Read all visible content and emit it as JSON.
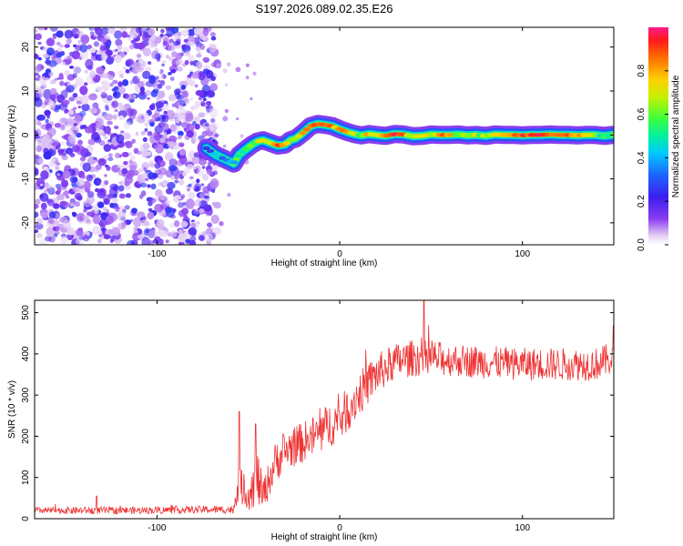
{
  "chart_data": [
    {
      "type": "heatmap",
      "title": "S197.2026.089.02.35.E26",
      "xlabel": "Height of straight line (km)",
      "ylabel": "Frequency (Hz)",
      "xlim": [
        -167,
        150
      ],
      "ylim": [
        -25,
        24.5
      ],
      "xticks": [
        -100,
        0,
        100
      ],
      "xtick_labels": [
        "-100",
        "0",
        "100"
      ],
      "yticks": [
        -20,
        -10,
        0,
        10,
        20
      ],
      "ytick_labels": [
        "-20",
        "-10",
        "0",
        "10",
        "20"
      ],
      "noise_region_x": [
        -167,
        -67
      ],
      "ridge": {
        "x": [
          -73,
          -68,
          -63,
          -58,
          -55,
          -52,
          -48,
          -45,
          -42,
          -38,
          -34,
          -30,
          -27,
          -24,
          -20,
          -16,
          -12,
          -8,
          -4,
          0,
          4,
          8,
          12,
          16,
          20,
          25,
          30,
          35,
          40,
          45,
          50,
          55,
          60,
          65,
          70,
          75,
          80,
          85,
          90,
          95,
          100,
          105,
          110,
          115,
          120,
          125,
          130,
          135,
          140,
          145,
          149
        ],
        "freq": [
          -3,
          -4.5,
          -5.5,
          -6.5,
          -4.5,
          -3.5,
          -2.2,
          -1.5,
          -1.2,
          -1.8,
          -2.4,
          -2.2,
          -1.2,
          -0.8,
          0.5,
          2,
          2.5,
          2.3,
          2,
          1.3,
          0.7,
          0.2,
          -0.1,
          0.2,
          0,
          -0.2,
          0.2,
          0.1,
          -0.3,
          -0.2,
          0.1,
          0,
          0,
          0.1,
          -0.1,
          0,
          -0.2,
          0.1,
          0,
          0,
          -0.1,
          0,
          0,
          0.1,
          0,
          0,
          -0.1,
          0,
          0,
          -0.2,
          0
        ],
        "amplitude": [
          0.3,
          0.35,
          0.4,
          0.35,
          0.5,
          0.55,
          0.6,
          0.7,
          0.75,
          0.6,
          0.85,
          0.7,
          0.6,
          0.75,
          0.8,
          0.9,
          0.92,
          0.95,
          0.85,
          0.75,
          0.8,
          0.7,
          0.6,
          0.85,
          0.65,
          0.8,
          0.9,
          0.85,
          0.6,
          0.7,
          0.65,
          0.85,
          0.8,
          0.6,
          0.7,
          0.65,
          0.6,
          0.7,
          0.85,
          0.9,
          0.88,
          0.92,
          0.95,
          0.9,
          0.92,
          0.85,
          0.8,
          0.7,
          0.6,
          0.5,
          0.45
        ]
      },
      "colorbar": {
        "label": "Normalized spectral amplitude",
        "range": [
          0,
          1
        ],
        "ticks": [
          0.0,
          0.2,
          0.4,
          0.6,
          0.8
        ],
        "tick_labels": [
          "0.0",
          "0.2",
          "0.4",
          "0.6",
          "0.8"
        ]
      }
    },
    {
      "type": "line",
      "xlabel": "Height of straight line (km)",
      "ylabel": "SNR (10 * v/v)",
      "xlim": [
        -167,
        150
      ],
      "ylim": [
        0,
        530
      ],
      "xticks": [
        -100,
        0,
        100
      ],
      "xtick_labels": [
        "-100",
        "0",
        "100"
      ],
      "yticks": [
        0,
        100,
        200,
        300,
        400,
        500
      ],
      "ytick_labels": [
        "0",
        "100",
        "200",
        "300",
        "400",
        "500"
      ],
      "color": "#ee3333",
      "envelope": {
        "x": [
          -167,
          -140,
          -110,
          -80,
          -58,
          -56,
          -50,
          -45,
          -42,
          -35,
          -28,
          -20,
          -10,
          -5,
          0,
          10,
          20,
          30,
          40,
          50,
          60,
          80,
          100,
          120,
          140,
          150
        ],
        "mean": [
          20,
          20,
          20,
          22,
          22,
          85,
          60,
          100,
          55,
          140,
          170,
          185,
          210,
          230,
          240,
          300,
          350,
          380,
          390,
          390,
          385,
          380,
          375,
          375,
          375,
          390
        ],
        "spread": [
          8,
          9,
          9,
          9,
          10,
          45,
          40,
          70,
          40,
          50,
          50,
          50,
          55,
          55,
          55,
          55,
          50,
          45,
          45,
          45,
          40,
          40,
          40,
          40,
          40,
          40
        ]
      },
      "spikes": [
        {
          "x": -133,
          "y": 55
        },
        {
          "x": -55,
          "y": 260
        },
        {
          "x": -46,
          "y": 230
        },
        {
          "x": 46,
          "y": 530
        },
        {
          "x": 150,
          "y": 470
        }
      ]
    }
  ]
}
